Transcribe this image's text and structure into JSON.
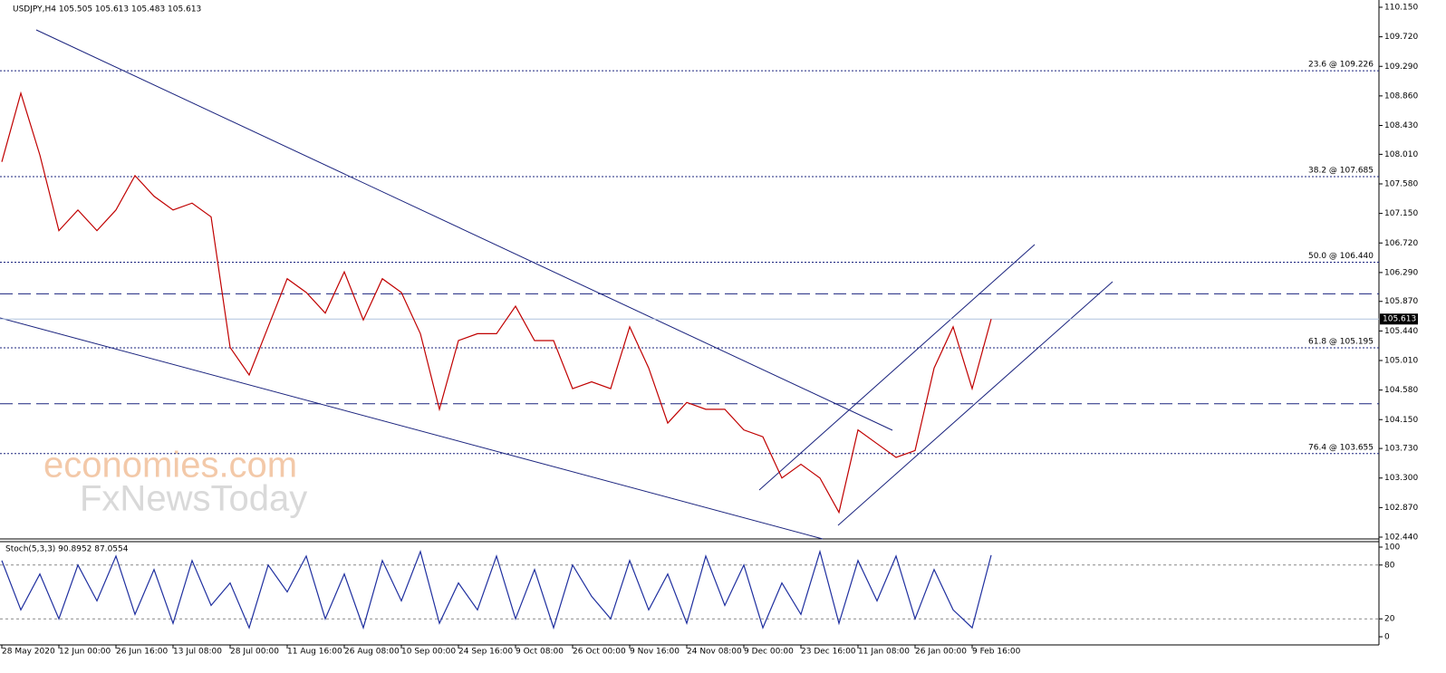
{
  "chart_data": [
    {
      "type": "line",
      "title": "USDJPY,H4  105.505 105.613 105.483 105.613",
      "color": "#c00000",
      "categories": [
        "28 May 2020",
        null,
        null,
        "12 Jun 00:00",
        null,
        null,
        "26 Jun 16:00",
        null,
        null,
        "13 Jul 08:00",
        null,
        null,
        "28 Jul 00:00",
        null,
        null,
        "11 Aug 16:00",
        null,
        null,
        "26 Aug 08:00",
        null,
        null,
        "10 Sep 00:00",
        null,
        null,
        "24 Sep 16:00",
        null,
        null,
        "9 Oct 08:00",
        null,
        null,
        "26 Oct 00:00",
        null,
        null,
        "9 Nov 16:00",
        null,
        null,
        "24 Nov 08:00",
        null,
        null,
        "9 Dec 00:00",
        null,
        null,
        "23 Dec 16:00",
        null,
        null,
        "11 Jan 08:00",
        null,
        null,
        "26 Jan 00:00",
        null,
        null,
        "9 Feb 16:00",
        null
      ],
      "values": [
        107.9,
        108.9,
        108.0,
        106.9,
        107.2,
        106.9,
        107.2,
        107.7,
        107.4,
        107.2,
        107.3,
        107.1,
        105.2,
        104.8,
        105.5,
        106.2,
        106.0,
        105.7,
        106.3,
        105.6,
        106.2,
        106.0,
        105.4,
        104.3,
        105.3,
        105.4,
        105.4,
        105.8,
        105.3,
        105.3,
        104.6,
        104.7,
        104.6,
        105.5,
        104.9,
        104.1,
        104.4,
        104.3,
        104.3,
        104.0,
        103.9,
        103.3,
        103.5,
        103.3,
        102.8,
        104.0,
        103.8,
        103.6,
        103.7,
        104.9,
        105.5,
        104.6,
        105.613
      ],
      "ylim": [
        102.44,
        110.15
      ],
      "yticks": [
        {
          "value": 110.15,
          "label": "110.150"
        },
        {
          "value": 109.72,
          "label": "109.720"
        },
        {
          "value": 109.29,
          "label": "109.290"
        },
        {
          "value": 108.86,
          "label": "108.860"
        },
        {
          "value": 108.43,
          "label": "108.430"
        },
        {
          "value": 108.01,
          "label": "108.010"
        },
        {
          "value": 107.58,
          "label": "107.580"
        },
        {
          "value": 107.15,
          "label": "107.150"
        },
        {
          "value": 106.72,
          "label": "106.720"
        },
        {
          "value": 106.29,
          "label": "106.290"
        },
        {
          "value": 105.87,
          "label": "105.870"
        },
        {
          "value": 105.44,
          "label": "105.440"
        },
        {
          "value": 105.01,
          "label": "105.010"
        },
        {
          "value": 104.58,
          "label": "104.580"
        },
        {
          "value": 104.15,
          "label": "104.150"
        },
        {
          "value": 103.73,
          "label": "103.730"
        },
        {
          "value": 103.3,
          "label": "103.300"
        },
        {
          "value": 102.87,
          "label": "102.870"
        },
        {
          "value": 102.44,
          "label": "102.440"
        }
      ],
      "levels": [
        {
          "value": 109.226,
          "label": "23.6 @ 109.226"
        },
        {
          "value": 107.685,
          "label": "38.2 @ 107.685"
        },
        {
          "value": 106.44,
          "label": "50.0 @ 106.440"
        },
        {
          "value": 105.195,
          "label": "61.8 @ 105.195"
        },
        {
          "value": 103.655,
          "label": "76.4 @ 103.655"
        }
      ],
      "hlines": [
        105.98,
        104.38
      ],
      "last": 105.613,
      "watermark": [
        "economies.com",
        "FxNewsToday"
      ]
    },
    {
      "type": "line",
      "title": "Stoch(5,3,3) 90.8952 87.0554",
      "color": "#1f2f9f",
      "values": [
        85,
        30,
        70,
        20,
        80,
        40,
        90,
        25,
        75,
        15,
        85,
        35,
        60,
        10,
        80,
        50,
        90,
        20,
        70,
        10,
        85,
        40,
        95,
        15,
        60,
        30,
        90,
        20,
        75,
        10,
        80,
        45,
        20,
        85,
        30,
        70,
        15,
        90,
        35,
        80,
        10,
        60,
        25,
        95,
        15,
        85,
        40,
        90,
        20,
        75,
        30,
        10,
        91
      ],
      "ylim": [
        0,
        100
      ],
      "yticks": [
        100,
        80,
        20,
        0
      ],
      "levels": [
        80,
        20
      ]
    }
  ]
}
